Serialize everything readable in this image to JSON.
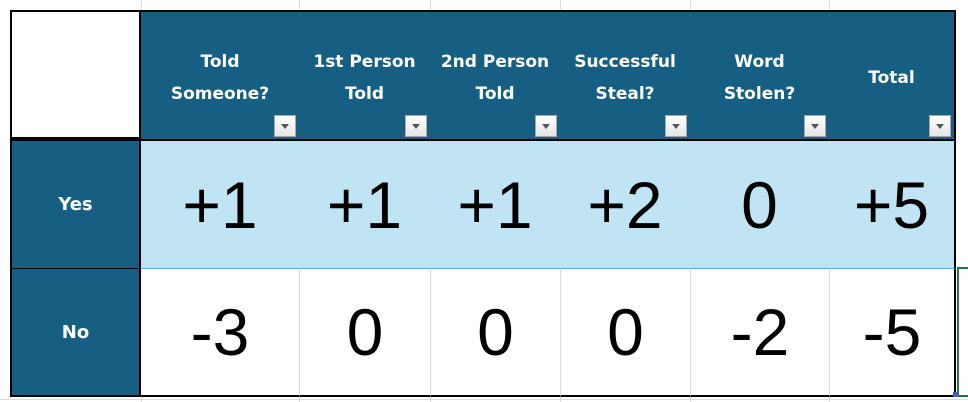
{
  "table": {
    "columns": [
      "Told\nSomeone?",
      "1st Person\nTold",
      "2nd Person\nTold",
      "Successful\nSteal?",
      "Word\nStolen?",
      "Total"
    ],
    "rows": [
      {
        "label": "Yes",
        "values": [
          "+1",
          "+1",
          "+1",
          "+2",
          "0",
          "+5"
        ]
      },
      {
        "label": "No",
        "values": [
          "-3",
          "0",
          "0",
          "0",
          "-2",
          "-5"
        ]
      }
    ]
  },
  "colors": {
    "header": "#175f82",
    "yes_row": "#c0e4f4"
  }
}
